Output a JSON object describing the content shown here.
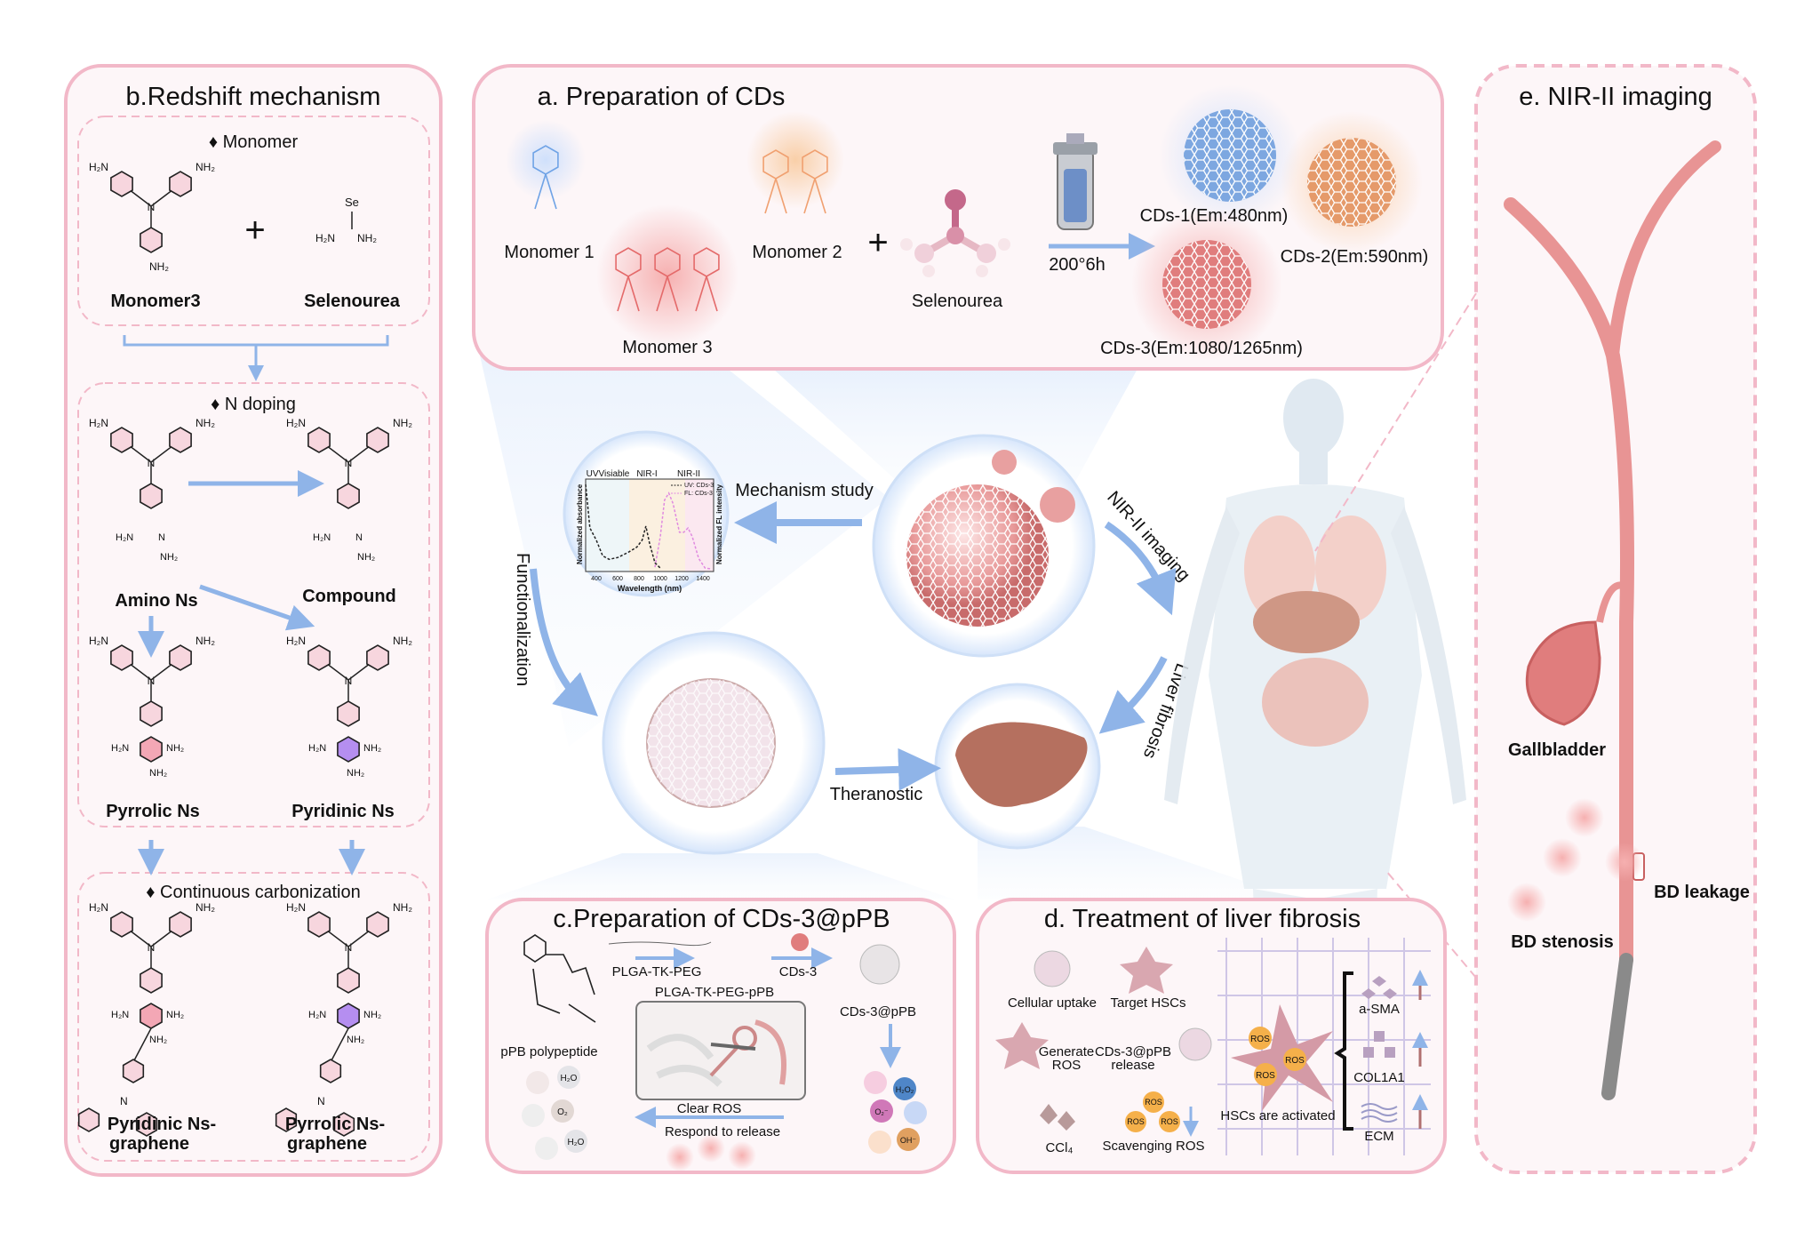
{
  "colors": {
    "panel_border": "#f2b8c8",
    "panel_fill": "#fdf6f8",
    "arrow_blue": "#8fb4e8",
    "ring_pink": "#f4b6c6",
    "ring_purple": "#b58ef0",
    "cd_blue": "#6fa3e6",
    "cd_orange": "#f0a070",
    "cd_red": "#e46a6a",
    "duct": "#e89494"
  },
  "chem": {
    "amine_right": "NH₂",
    "amine_left": "H₂N",
    "n": "N",
    "se": "Se"
  },
  "panel_b": {
    "title": "b.Redshift mechanism",
    "monomer_header": "♦ Monomer",
    "monomer3": "Monomer3",
    "selenourea": "Selenourea",
    "ndoping_header": "♦ N doping",
    "amino_ns": "Amino Ns",
    "compound": "Compound",
    "pyrrolic_ns": "Pyrrolic Ns",
    "pyridinic_ns": "Pyridinic Ns",
    "carbonization_header": "♦ Continuous carbonization",
    "pyridinic_graphene_1": "Pyridinic Ns-",
    "pyridinic_graphene_2": "graphene",
    "pyrrolic_graphene_1": "Pyrrolic Ns-",
    "pyrrolic_graphene_2": "graphene"
  },
  "panel_a": {
    "title": "a. Preparation of CDs",
    "monomer1": "Monomer 1",
    "monomer2": "Monomer 2",
    "monomer3": "Monomer 3",
    "selenourea": "Selenourea",
    "condition": "200°6h",
    "cds1": "CDs-1(Em:480nm)",
    "cds2": "CDs-2(Em:590nm)",
    "cds3": "CDs-3(Em:1080/1265nm)"
  },
  "center": {
    "mechanism_study": "Mechanism study",
    "nir_imaging": "NIR-II imaging",
    "functionalization": "Functionalization",
    "theranostic": "Theranostic",
    "liver_fibrosis": "Liver fibrosis"
  },
  "spectrum": {
    "region_uv": "UVVisiable",
    "region_nir1": "NIR-I",
    "region_nir2": "NIR-II",
    "legend_uv": "UV: CDs-3",
    "legend_fl": "FL: CDs-3",
    "ylabel_left": "Normalized absorbance",
    "ylabel_right": "Normalized FL intensity",
    "xlabel": "Wavelength (nm)",
    "xticks": [
      "400",
      "600",
      "800",
      "1000",
      "1200",
      "1400"
    ],
    "xlim": [
      300,
      1500
    ],
    "uv_series": [
      [
        300,
        1.0
      ],
      [
        340,
        0.5
      ],
      [
        400,
        0.36
      ],
      [
        460,
        0.18
      ],
      [
        520,
        0.14
      ],
      [
        600,
        0.16
      ],
      [
        700,
        0.22
      ],
      [
        780,
        0.28
      ],
      [
        830,
        0.36
      ],
      [
        865,
        0.52
      ],
      [
        900,
        0.32
      ],
      [
        950,
        0.1
      ],
      [
        1000,
        0.04
      ]
    ],
    "fl_series": [
      [
        950,
        0.05
      ],
      [
        1000,
        0.4
      ],
      [
        1040,
        0.82
      ],
      [
        1080,
        0.9
      ],
      [
        1120,
        0.78
      ],
      [
        1180,
        0.45
      ],
      [
        1220,
        0.45
      ],
      [
        1260,
        0.5
      ],
      [
        1300,
        0.4
      ],
      [
        1360,
        0.15
      ],
      [
        1420,
        0.04
      ],
      [
        1480,
        0.03
      ]
    ]
  },
  "panel_c": {
    "title": "c.Preparation of CDs-3@pPB",
    "plga": "PLGA-TK-PEG",
    "cds3": "CDs-3",
    "plga_ppb": "PLGA-TK-PEG-pPB",
    "cds3_ppb": "CDs-3@pPB",
    "ppb": "pPB polypeptide",
    "clear_ros": "Clear ROS",
    "respond": "Respond to release",
    "h2o": "H₂O",
    "o2": "O₂",
    "h2o2": "H₂O₂",
    "superoxide": "O₂⁻",
    "oh": "OH⁻"
  },
  "panel_d": {
    "title": "d. Treatment of liver fibrosis",
    "uptake": "Cellular uptake",
    "target": "Target HSCs",
    "generate_1": "Generate",
    "generate_2": "ROS",
    "release_1": "CDs-3@pPB",
    "release_2": "release",
    "ccl4": "CCl₄",
    "scavenging": "Scavenging ROS",
    "activated": "HSCs are activated",
    "ros": "ROS",
    "asma": "a-SMA",
    "col1a1": "COL1A1",
    "ecm": "ECM"
  },
  "panel_e": {
    "title": "e. NIR-II imaging",
    "gallbladder": "Gallbladder",
    "leakage": "BD leakage",
    "stenosis": "BD stenosis"
  }
}
